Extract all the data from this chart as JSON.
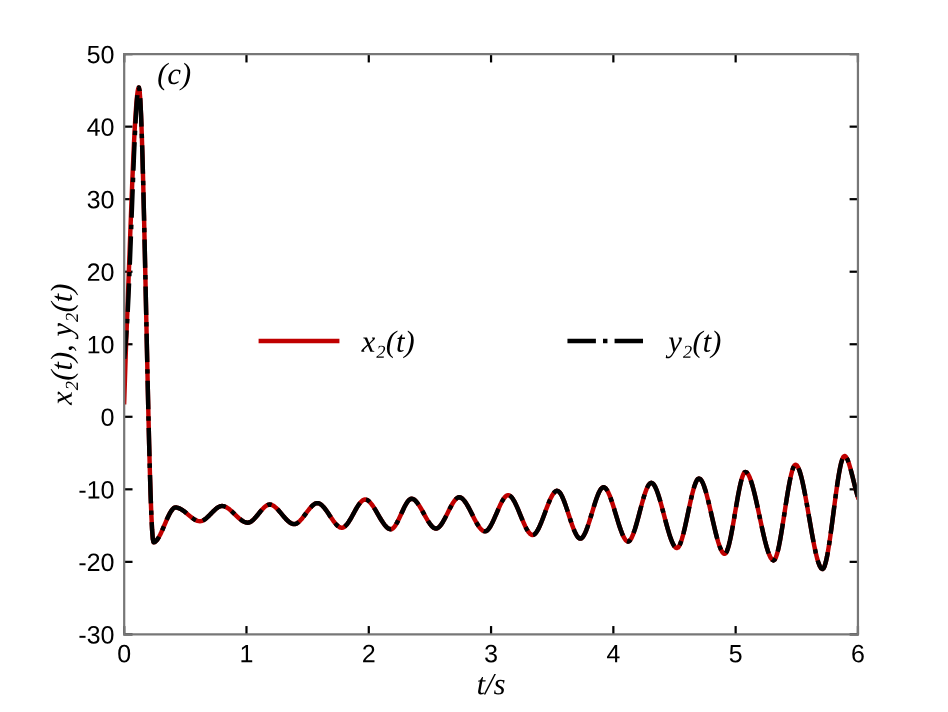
{
  "chart_data": {
    "type": "line",
    "xlabel": "t/s",
    "ylabel": "x₂(t), y₂(t)",
    "x": [
      0,
      0.02,
      0.12,
      0.24,
      0.42,
      0.62,
      0.8,
      1.01,
      1.19,
      1.39,
      1.58,
      1.78,
      1.97,
      2.18,
      2.35,
      2.55,
      2.74,
      2.95,
      3.14,
      3.34,
      3.54,
      3.73,
      3.92,
      4.12,
      4.31,
      4.52,
      4.7,
      4.91,
      5.08,
      5.31,
      5.49,
      5.71,
      5.89,
      6.0
    ],
    "series": [
      {
        "name": "x₂(t)",
        "color": "#c00000",
        "line_style": "solid",
        "values": [
          2,
          12,
          45.4,
          -17.3,
          -12.5,
          -14.4,
          -12.3,
          -14.6,
          -12.1,
          -14.8,
          -11.9,
          -15.3,
          -11.4,
          -15.5,
          -11.3,
          -15.4,
          -11.1,
          -15.8,
          -10.8,
          -16.3,
          -10.2,
          -16.8,
          -9.7,
          -17.2,
          -9.1,
          -18.1,
          -8.5,
          -18.9,
          -7.6,
          -19.8,
          -6.6,
          -21.0,
          -5.4,
          -11.1
        ]
      },
      {
        "name": "y₂(t)",
        "color": "#000000",
        "line_style": "dashdot",
        "values": [
          8,
          12,
          45.4,
          -17.3,
          -12.5,
          -14.4,
          -12.3,
          -14.6,
          -12.1,
          -14.8,
          -11.9,
          -15.3,
          -11.4,
          -15.5,
          -11.3,
          -15.4,
          -11.1,
          -15.8,
          -10.8,
          -16.3,
          -10.2,
          -16.8,
          -9.7,
          -17.2,
          -9.1,
          -18.1,
          -8.5,
          -18.9,
          -7.6,
          -19.8,
          -6.6,
          -21.0,
          -5.4,
          -11.1
        ]
      }
    ],
    "xlim": [
      0,
      6
    ],
    "xticks": [
      0,
      1,
      2,
      3,
      4,
      5,
      6
    ],
    "ylim": [
      -30,
      50
    ],
    "yticks": [
      -30,
      -20,
      -10,
      0,
      10,
      20,
      30,
      40,
      50
    ],
    "annotations": [
      "(c)"
    ],
    "legend": "center",
    "grid": false,
    "marker": "none"
  }
}
